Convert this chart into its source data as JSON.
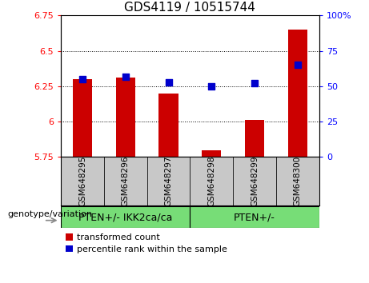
{
  "title": "GDS4119 / 10515744",
  "samples": [
    "GSM648295",
    "GSM648296",
    "GSM648297",
    "GSM648298",
    "GSM648299",
    "GSM648300"
  ],
  "red_values": [
    6.3,
    6.31,
    6.2,
    5.8,
    6.01,
    6.65
  ],
  "blue_values": [
    55,
    57,
    53,
    50,
    52,
    65
  ],
  "ylim_left": [
    5.75,
    6.75
  ],
  "ylim_right": [
    0,
    100
  ],
  "yticks_left": [
    5.75,
    6.0,
    6.25,
    6.5,
    6.75
  ],
  "yticks_right": [
    0,
    25,
    50,
    75,
    100
  ],
  "ytick_labels_left": [
    "5.75",
    "6",
    "6.25",
    "6.5",
    "6.75"
  ],
  "ytick_labels_right": [
    "0",
    "25",
    "50",
    "75",
    "100%"
  ],
  "group1_label": "PTEN+/- IKK2ca/ca",
  "group2_label": "PTEN+/-",
  "genotype_label": "genotype/variation",
  "legend1": "transformed count",
  "legend2": "percentile rank within the sample",
  "bar_color": "#cc0000",
  "dot_color": "#0000cc",
  "group_color": "#77dd77",
  "sample_box_color": "#c8c8c8",
  "group1_indices": [
    0,
    1,
    2
  ],
  "group2_indices": [
    3,
    4,
    5
  ],
  "bar_width": 0.45,
  "dot_size": 40,
  "background_color": "#ffffff",
  "tick_label_fontsize": 8,
  "title_fontsize": 11,
  "sample_fontsize": 7.5,
  "group_fontsize": 9,
  "legend_fontsize": 8,
  "geno_fontsize": 8
}
